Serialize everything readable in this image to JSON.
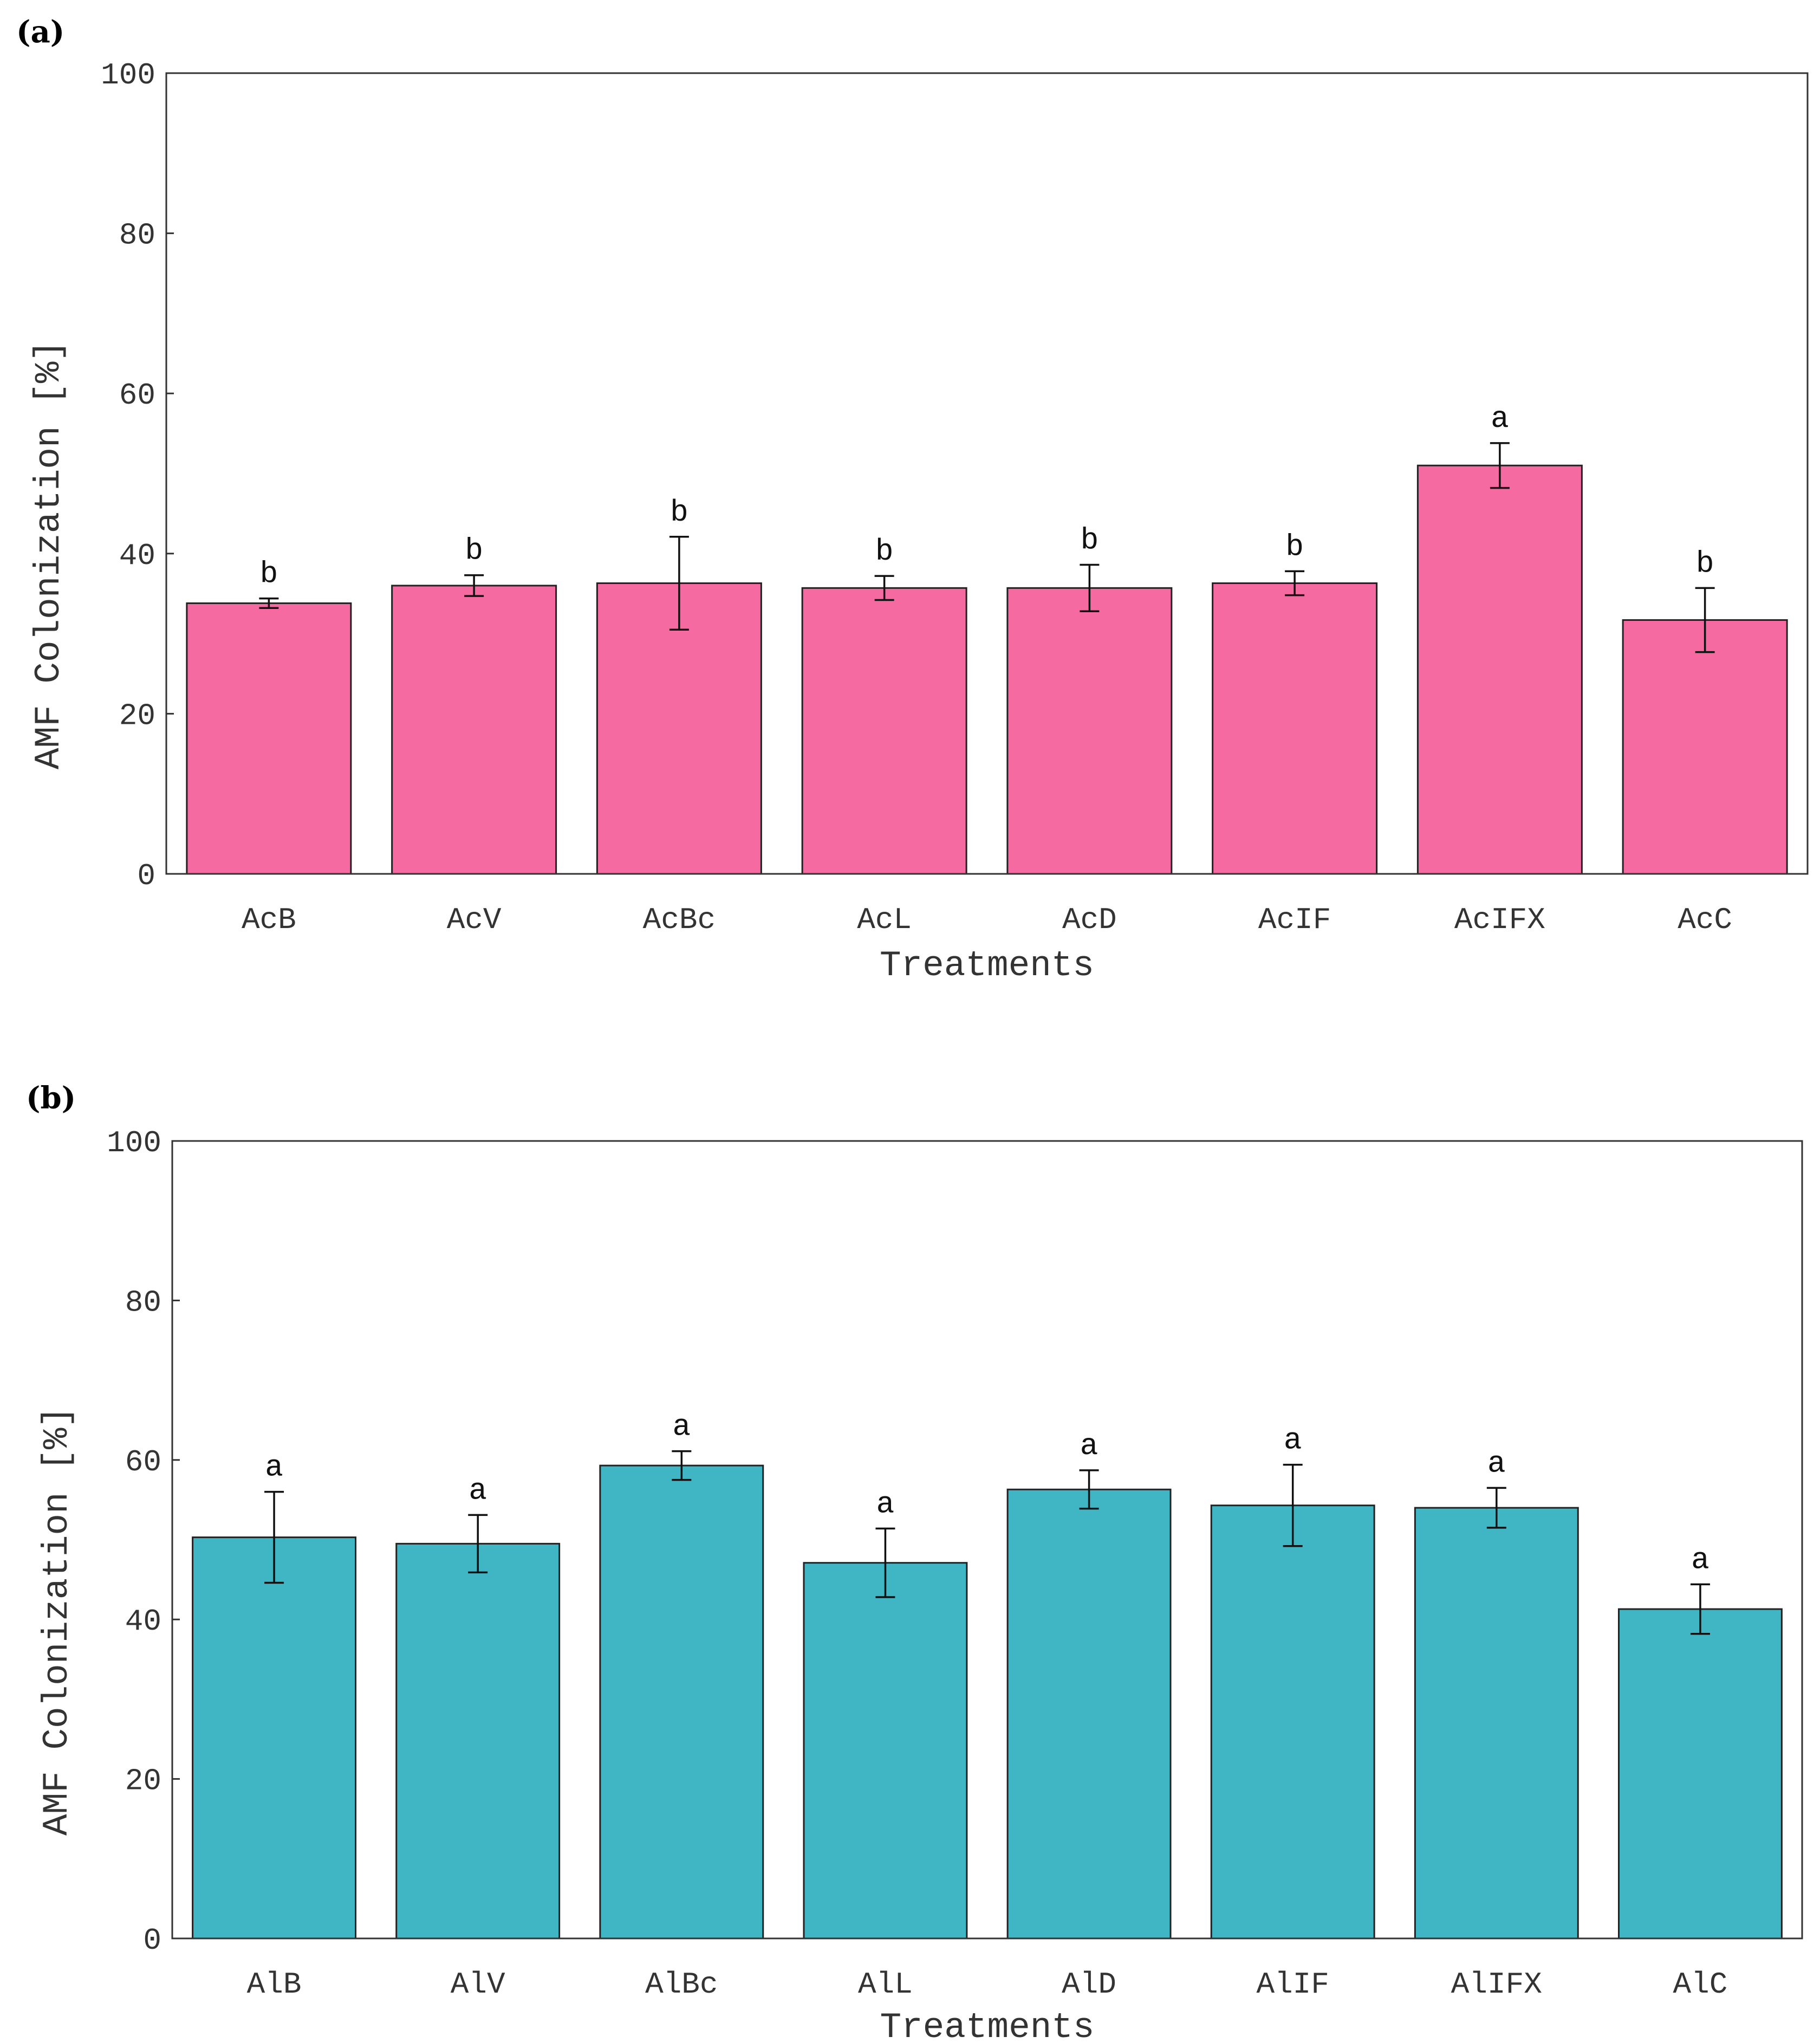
{
  "chart_data": [
    {
      "panel": "(a)",
      "type": "bar",
      "color": "#f56aa0",
      "categories": [
        "AcB",
        "AcV",
        "AcBc",
        "AcL",
        "AcD",
        "AcIF",
        "AcIFX",
        "AcC"
      ],
      "values": [
        33.8,
        36.0,
        36.3,
        35.7,
        35.7,
        36.3,
        51.0,
        31.7
      ],
      "errors": [
        0.6,
        1.3,
        5.8,
        1.5,
        2.9,
        1.5,
        2.8,
        4.0
      ],
      "letters": [
        "b",
        "b",
        "b",
        "b",
        "b",
        "b",
        "a",
        "b"
      ],
      "xlabel": "Treatments",
      "ylabel": "AMF Colonization [%]",
      "ylim": [
        0,
        100
      ],
      "yticks": [
        "0",
        "20",
        "40",
        "60",
        "80",
        "100"
      ]
    },
    {
      "panel": "(b)",
      "type": "bar",
      "color": "#40b5c4",
      "categories": [
        "AlB",
        "AlV",
        "AlBc",
        "AlL",
        "AlD",
        "AlIF",
        "AlIFX",
        "AlC"
      ],
      "values": [
        50.3,
        49.5,
        59.3,
        47.1,
        56.3,
        54.3,
        54.0,
        41.3
      ],
      "errors": [
        5.7,
        3.6,
        1.8,
        4.3,
        2.4,
        5.1,
        2.5,
        3.1
      ],
      "letters": [
        "a",
        "a",
        "a",
        "a",
        "a",
        "a",
        "a",
        "a"
      ],
      "xlabel": "Treatments",
      "ylabel": "AMF Colonization [%]",
      "ylim": [
        0,
        100
      ],
      "yticks": [
        "0",
        "20",
        "40",
        "60",
        "80",
        "100"
      ]
    }
  ]
}
